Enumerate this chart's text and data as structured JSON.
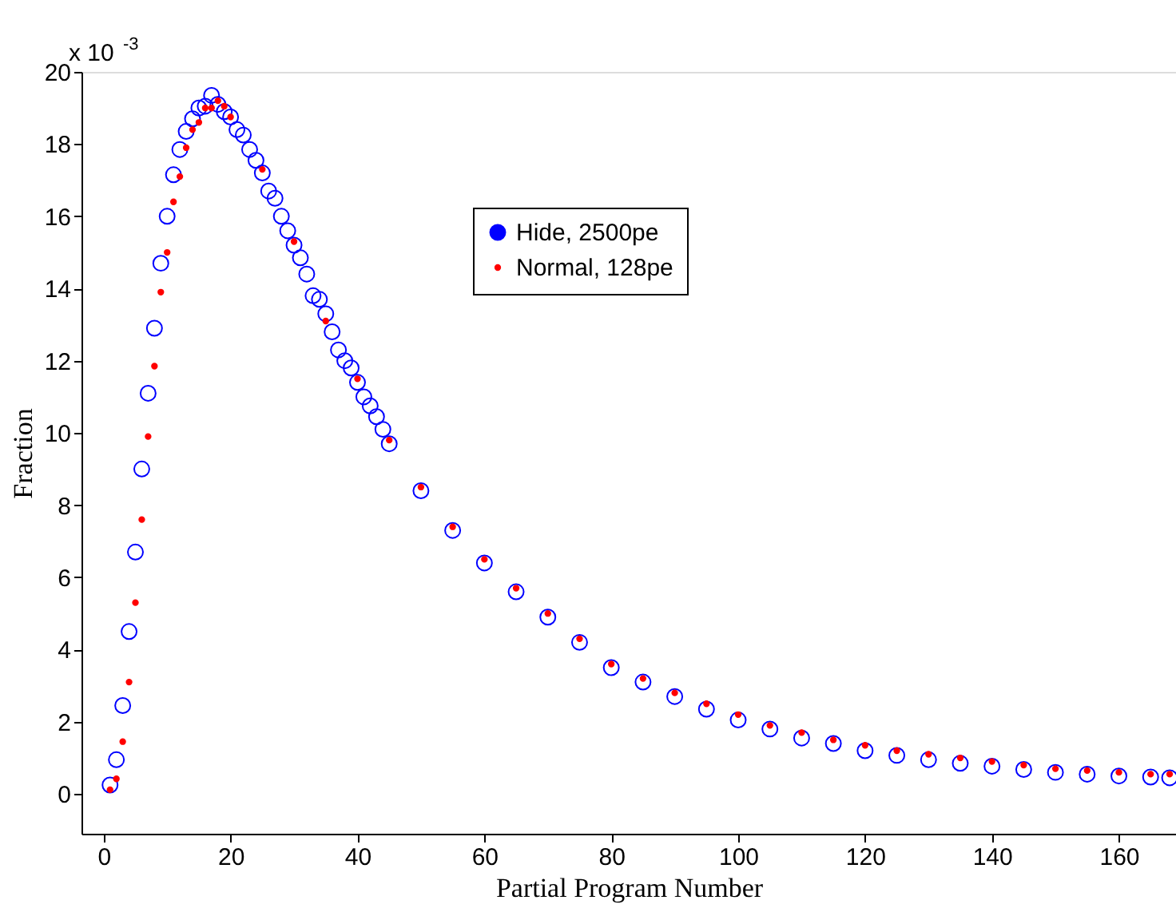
{
  "chart_data": {
    "type": "scatter",
    "xlabel": "Partial Program Number",
    "ylabel": "Fraction",
    "annotations": [
      "x 10$^{-3}$"
    ],
    "xlim": [
      -3.5,
      169
    ],
    "xticks": [
      0,
      20,
      40,
      60,
      80,
      100,
      120,
      140,
      160
    ],
    "ylim": [
      -1.1,
      20
    ],
    "yticks": [
      0,
      2,
      4,
      6,
      8,
      10,
      12,
      14,
      16,
      18,
      20
    ],
    "grid": false,
    "legend": "top right",
    "marker": "circle",
    "series": [
      {
        "name": "Hide, 2500pe",
        "color": "#0000ff",
        "x": [
          1,
          2,
          3,
          4,
          5,
          6,
          7,
          8,
          9,
          10,
          11,
          12,
          13,
          14,
          15,
          16,
          17,
          18,
          19,
          20,
          21,
          22,
          23,
          24,
          25,
          26,
          27,
          28,
          29,
          30,
          31,
          32,
          33,
          34,
          35,
          36,
          37,
          38,
          39,
          40,
          41,
          42,
          43,
          44,
          45,
          50,
          55,
          60,
          65,
          70,
          75,
          80,
          85,
          90,
          95,
          100,
          105,
          110,
          115,
          120,
          125,
          130,
          135,
          140,
          145,
          150,
          155,
          160,
          165,
          168
        ],
        "values": [
          0.25,
          0.95,
          2.45,
          4.5,
          6.7,
          9.0,
          11.1,
          12.9,
          14.7,
          16.0,
          17.15,
          17.85,
          18.35,
          18.7,
          19.0,
          19.05,
          19.35,
          19.1,
          18.9,
          18.75,
          18.4,
          18.25,
          17.85,
          17.55,
          17.2,
          16.7,
          16.5,
          16.0,
          15.6,
          15.2,
          14.85,
          14.4,
          13.8,
          13.7,
          13.3,
          12.8,
          12.3,
          12.0,
          11.8,
          11.4,
          11.0,
          10.75,
          10.45,
          10.1,
          9.7,
          8.4,
          7.3,
          6.4,
          5.6,
          4.9,
          4.2,
          3.5,
          3.1,
          2.7,
          2.35,
          2.05,
          1.8,
          1.55,
          1.4,
          1.2,
          1.07,
          0.95,
          0.85,
          0.77,
          0.68,
          0.6,
          0.55,
          0.5,
          0.47,
          0.45
        ]
      },
      {
        "name": "Normal, 128pe",
        "color": "#ff0000",
        "x": [
          1,
          2,
          3,
          4,
          5,
          6,
          7,
          8,
          9,
          10,
          11,
          12,
          13,
          14,
          15,
          16,
          17,
          18,
          19,
          20,
          25,
          30,
          35,
          40,
          45,
          50,
          55,
          60,
          65,
          70,
          75,
          80,
          85,
          90,
          95,
          100,
          105,
          110,
          115,
          120,
          125,
          130,
          135,
          140,
          145,
          150,
          155,
          160,
          165,
          168
        ],
        "values": [
          0.12,
          0.42,
          1.45,
          3.1,
          5.3,
          7.6,
          9.9,
          11.85,
          13.9,
          15.0,
          16.4,
          17.1,
          17.9,
          18.4,
          18.6,
          19.0,
          19.0,
          19.2,
          19.05,
          18.75,
          17.3,
          15.3,
          13.1,
          11.5,
          9.8,
          8.5,
          7.4,
          6.5,
          5.7,
          5.0,
          4.3,
          3.6,
          3.2,
          2.8,
          2.5,
          2.2,
          1.9,
          1.7,
          1.5,
          1.35,
          1.2,
          1.1,
          1.0,
          0.9,
          0.8,
          0.7,
          0.65,
          0.6,
          0.55,
          0.55
        ]
      }
    ]
  }
}
